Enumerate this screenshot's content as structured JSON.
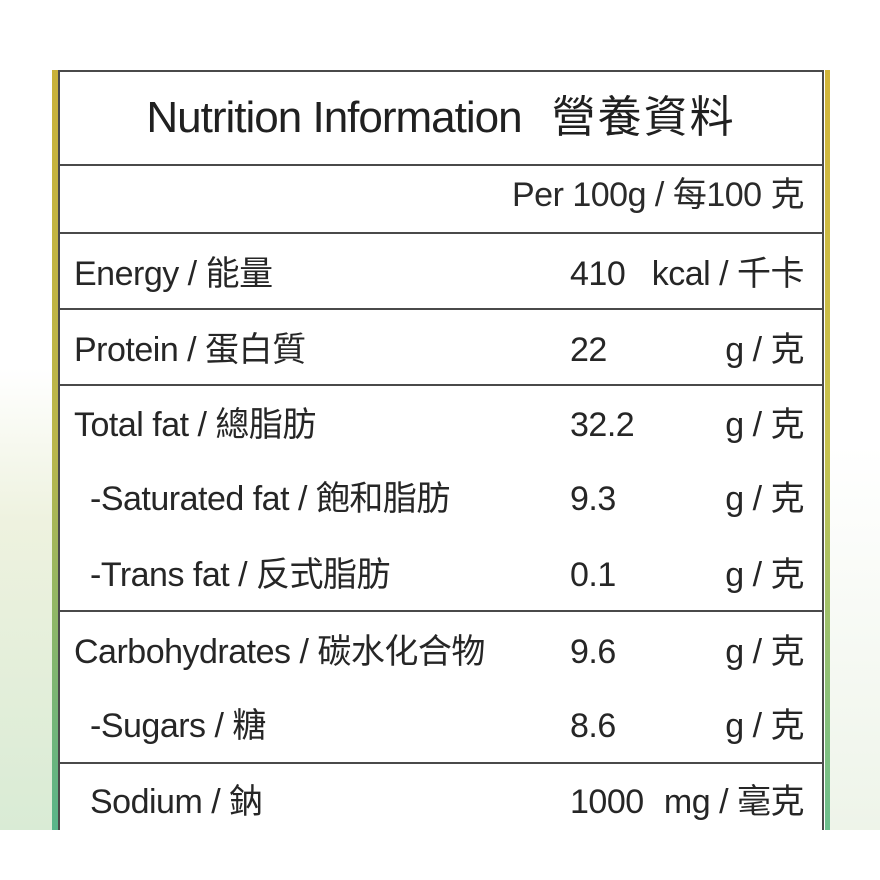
{
  "label": {
    "title_en": "Nutrition Information",
    "title_cn": "營養資料",
    "per_serving": "Per 100g / 每100 克"
  },
  "nutrients": [
    {
      "label": "Energy / 能量",
      "value": "410",
      "unit": "kcal / 千卡"
    },
    {
      "label": "Protein / 蛋白質",
      "value": "22",
      "unit": "g / 克"
    },
    {
      "label": "Total fat / 總脂肪",
      "value": "32.2",
      "unit": "g / 克"
    },
    {
      "label": "-Saturated fat / 飽和脂肪",
      "value": "9.3",
      "unit": "g / 克"
    },
    {
      "label": "-Trans fat / 反式脂肪",
      "value": "0.1",
      "unit": "g / 克"
    },
    {
      "label": "Carbohydrates / 碳水化合物",
      "value": "9.6",
      "unit": "g / 克"
    },
    {
      "label": "-Sugars / 糖",
      "value": "8.6",
      "unit": "g / 克"
    },
    {
      "label": "Sodium / 鈉",
      "value": "1000",
      "unit": "mg / 毫克"
    }
  ]
}
